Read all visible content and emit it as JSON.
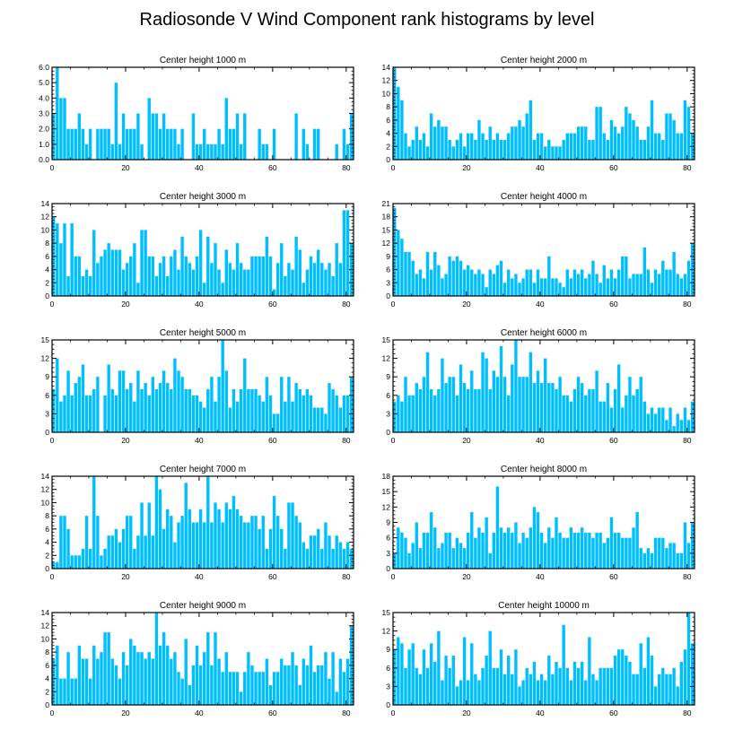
{
  "title": "Radiosonde V Wind Component rank histograms by level",
  "colors": {
    "bar": "#00BFFF",
    "axis": "#000000"
  },
  "chart_data": [
    {
      "type": "bar",
      "title": "Center height 1000 m",
      "xlim": [
        0,
        82
      ],
      "ylim": [
        0,
        6
      ],
      "xticks": [
        0,
        20,
        40,
        60,
        80
      ],
      "yticks": [
        "0.0",
        "1.0",
        "2.0",
        "3.0",
        "4.0",
        "5.0",
        "6.0"
      ],
      "values": [
        3,
        6,
        4,
        4,
        2,
        2,
        2,
        3,
        2,
        1,
        2,
        0,
        2,
        2,
        2,
        2,
        1,
        5,
        1,
        3,
        2,
        2,
        2,
        3,
        1,
        0,
        4,
        3,
        3,
        2,
        3,
        2,
        2,
        2,
        1,
        2,
        0,
        0,
        3,
        1,
        1,
        2,
        1,
        1,
        1,
        2,
        1,
        4,
        2,
        2,
        3,
        1,
        3,
        0,
        0,
        0,
        2,
        1,
        1,
        0,
        2,
        0,
        0,
        0,
        0,
        0,
        3,
        0,
        2,
        1,
        0,
        2,
        2,
        0,
        0,
        0,
        0,
        1,
        0,
        2,
        1,
        3
      ]
    },
    {
      "type": "bar",
      "title": "Center height 2000 m",
      "xlim": [
        0,
        82
      ],
      "ylim": [
        0,
        14
      ],
      "xticks": [
        0,
        20,
        40,
        60,
        80
      ],
      "yticks": [
        "0",
        "2",
        "4",
        "6",
        "8",
        "10",
        "12",
        "14"
      ],
      "values": [
        14,
        11,
        9,
        4,
        2,
        3,
        5,
        3,
        4,
        2,
        7,
        5,
        6,
        5,
        5,
        3,
        2,
        3,
        4,
        2,
        4,
        4,
        3,
        6,
        4,
        3,
        5,
        3,
        4,
        3,
        3,
        4,
        5,
        5,
        6,
        5,
        7,
        9,
        3,
        4,
        4,
        2,
        3,
        2,
        2,
        2,
        3,
        4,
        4,
        4,
        5,
        5,
        5,
        3,
        3,
        8,
        8,
        4,
        3,
        6,
        5,
        4,
        5,
        8,
        7,
        6,
        5,
        3,
        3,
        5,
        9,
        4,
        4,
        3,
        7,
        7,
        6,
        4,
        4,
        9,
        8,
        4
      ]
    },
    {
      "type": "bar",
      "title": "Center height 3000 m",
      "xlim": [
        0,
        82
      ],
      "ylim": [
        0,
        14
      ],
      "xticks": [
        0,
        20,
        40,
        60,
        80
      ],
      "yticks": [
        "0",
        "2",
        "4",
        "6",
        "8",
        "10",
        "12",
        "14"
      ],
      "values": [
        12,
        11,
        8,
        11,
        3,
        11,
        6,
        6,
        3,
        4,
        3,
        10,
        5,
        6,
        7,
        8,
        7,
        7,
        7,
        4,
        5,
        6,
        8,
        2,
        10,
        10,
        6,
        6,
        3,
        5,
        6,
        3,
        6,
        7,
        4,
        9,
        6,
        5,
        4,
        6,
        10,
        2,
        9,
        5,
        8,
        4,
        2,
        7,
        5,
        4,
        8,
        5,
        4,
        4,
        6,
        6,
        6,
        6,
        9,
        6,
        1,
        5,
        8,
        3,
        5,
        4,
        9,
        7,
        2,
        4,
        6,
        5,
        7,
        5,
        4,
        5,
        3,
        8,
        5,
        13,
        13,
        8
      ]
    },
    {
      "type": "bar",
      "title": "Center height 4000 m",
      "xlim": [
        0,
        82
      ],
      "ylim": [
        0,
        21
      ],
      "xticks": [
        0,
        20,
        40,
        60,
        80
      ],
      "yticks": [
        "0",
        "3",
        "6",
        "9",
        "12",
        "15",
        "18",
        "21"
      ],
      "values": [
        20,
        15,
        13,
        10,
        10,
        8,
        5,
        6,
        4,
        10,
        6,
        10,
        7,
        4,
        5,
        9,
        8,
        9,
        8,
        6,
        7,
        6,
        5,
        6,
        5,
        2,
        6,
        5,
        7,
        8,
        3,
        6,
        4,
        5,
        3,
        4,
        6,
        6,
        3,
        6,
        4,
        4,
        9,
        4,
        4,
        3,
        2,
        6,
        4,
        6,
        5,
        6,
        4,
        5,
        8,
        5,
        3,
        7,
        4,
        6,
        4,
        6,
        9,
        9,
        4,
        5,
        5,
        5,
        11,
        6,
        3,
        6,
        5,
        8,
        6,
        6,
        10,
        5,
        4,
        5,
        8,
        12
      ]
    },
    {
      "type": "bar",
      "title": "Center height 5000 m",
      "xlim": [
        0,
        82
      ],
      "ylim": [
        0,
        15
      ],
      "xticks": [
        0,
        20,
        40,
        60,
        80
      ],
      "yticks": [
        "0",
        "3",
        "6",
        "9",
        "12",
        "15"
      ],
      "values": [
        7,
        12,
        5,
        6,
        10,
        6,
        8,
        9,
        11,
        6,
        6,
        7,
        9,
        0,
        6,
        11,
        7,
        6,
        10,
        10,
        7,
        8,
        5,
        10,
        7,
        8,
        6,
        9,
        7,
        8,
        10,
        8,
        7,
        12,
        10,
        9,
        7,
        7,
        6,
        6,
        5,
        4,
        7,
        9,
        5,
        9,
        15,
        10,
        4,
        7,
        5,
        7,
        12,
        7,
        7,
        7,
        6,
        5,
        9,
        6,
        3,
        3,
        9,
        5,
        9,
        5,
        8,
        7,
        6,
        7,
        6,
        4,
        4,
        4,
        3,
        8,
        7,
        6,
        4,
        6,
        6,
        9
      ]
    },
    {
      "type": "bar",
      "title": "Center height 6000 m",
      "xlim": [
        0,
        82
      ],
      "ylim": [
        0,
        15
      ],
      "xticks": [
        0,
        20,
        40,
        60,
        80
      ],
      "yticks": [
        "0",
        "3",
        "6",
        "9",
        "12",
        "15"
      ],
      "values": [
        5,
        6,
        5,
        9,
        6,
        6,
        8,
        7,
        9,
        13,
        7,
        6,
        7,
        12,
        8,
        9,
        9,
        6,
        11,
        8,
        7,
        10,
        7,
        7,
        13,
        12,
        7,
        10,
        9,
        14,
        9,
        6,
        11,
        15,
        9,
        9,
        9,
        13,
        8,
        10,
        8,
        12,
        8,
        8,
        7,
        9,
        6,
        6,
        5,
        7,
        9,
        8,
        6,
        7,
        7,
        10,
        5,
        5,
        8,
        4,
        7,
        11,
        4,
        6,
        9,
        6,
        7,
        9,
        5,
        3,
        4,
        3,
        4,
        4,
        2,
        4,
        1,
        3,
        2,
        4,
        2,
        5
      ]
    },
    {
      "type": "bar",
      "title": "Center height 7000 m",
      "xlim": [
        0,
        82
      ],
      "ylim": [
        0,
        14
      ],
      "xticks": [
        0,
        20,
        40,
        60,
        80
      ],
      "yticks": [
        "0",
        "2",
        "4",
        "6",
        "8",
        "10",
        "12",
        "14"
      ],
      "values": [
        1,
        1,
        8,
        8,
        6,
        2,
        2,
        2,
        3,
        8,
        3,
        14,
        8,
        2,
        3,
        5,
        5,
        6,
        4,
        6,
        8,
        8,
        3,
        5,
        10,
        5,
        10,
        5,
        14,
        12,
        6,
        9,
        8,
        4,
        7,
        8,
        13,
        9,
        7,
        7,
        9,
        7,
        14,
        7,
        10,
        9,
        7,
        10,
        9,
        11,
        9,
        8,
        7,
        7,
        8,
        8,
        6,
        8,
        3,
        6,
        11,
        8,
        6,
        3,
        10,
        10,
        8,
        7,
        4,
        3,
        5,
        5,
        6,
        3,
        7,
        5,
        3,
        5,
        4,
        3,
        4,
        3
      ]
    },
    {
      "type": "bar",
      "title": "Center height 8000 m",
      "xlim": [
        0,
        82
      ],
      "ylim": [
        0,
        18
      ],
      "xticks": [
        0,
        20,
        40,
        60,
        80
      ],
      "yticks": [
        "0",
        "3",
        "6",
        "9",
        "12",
        "15",
        "18"
      ],
      "values": [
        3,
        8,
        7,
        6,
        3,
        5,
        9,
        4,
        7,
        7,
        11,
        8,
        4,
        5,
        7,
        7,
        4,
        6,
        5,
        4,
        7,
        11,
        6,
        8,
        7,
        10,
        3,
        7,
        16,
        8,
        7,
        8,
        7,
        9,
        5,
        7,
        6,
        8,
        12,
        11,
        7,
        5,
        8,
        6,
        10,
        7,
        6,
        6,
        8,
        7,
        7,
        8,
        7,
        7,
        6,
        7,
        7,
        5,
        6,
        10,
        7,
        7,
        6,
        6,
        6,
        8,
        11,
        4,
        3,
        4,
        3,
        6,
        6,
        6,
        4,
        5,
        5,
        3,
        3,
        9,
        5,
        9
      ]
    },
    {
      "type": "bar",
      "title": "Center height 9000 m",
      "xlim": [
        0,
        82
      ],
      "ylim": [
        0,
        14
      ],
      "xticks": [
        0,
        20,
        40,
        60,
        80
      ],
      "yticks": [
        "0",
        "2",
        "4",
        "6",
        "8",
        "10",
        "12",
        "14"
      ],
      "values": [
        7,
        9,
        4,
        4,
        8,
        4,
        4,
        9,
        7,
        7,
        4,
        9,
        7,
        8,
        11,
        11,
        7,
        6,
        4,
        8,
        6,
        10,
        9,
        8,
        8,
        7,
        8,
        7,
        14,
        9,
        11,
        9,
        7,
        8,
        5,
        4,
        10,
        3,
        6,
        9,
        6,
        8,
        11,
        6,
        11,
        7,
        5,
        8,
        5,
        5,
        5,
        2,
        5,
        8,
        6,
        5,
        5,
        5,
        7,
        3,
        5,
        5,
        7,
        6,
        6,
        8,
        6,
        3,
        7,
        6,
        9,
        5,
        6,
        6,
        8,
        4,
        8,
        2,
        7,
        5,
        7,
        12
      ]
    },
    {
      "type": "bar",
      "title": "Center height 10000 m",
      "xlim": [
        0,
        82
      ],
      "ylim": [
        0,
        15
      ],
      "xticks": [
        0,
        20,
        40,
        60,
        80
      ],
      "yticks": [
        "0",
        "3",
        "6",
        "9",
        "12",
        "15"
      ],
      "values": [
        9,
        11,
        10,
        6,
        9,
        10,
        6,
        5,
        9,
        6,
        10,
        7,
        12,
        4,
        8,
        6,
        8,
        3,
        4,
        11,
        4,
        10,
        5,
        4,
        6,
        8,
        12,
        6,
        6,
        9,
        5,
        8,
        5,
        9,
        3,
        4,
        6,
        5,
        7,
        4,
        5,
        4,
        8,
        5,
        7,
        6,
        13,
        6,
        4,
        7,
        6,
        7,
        4,
        11,
        5,
        4,
        6,
        6,
        6,
        6,
        8,
        9,
        9,
        8,
        7,
        5,
        5,
        10,
        6,
        11,
        8,
        3,
        5,
        6,
        5,
        5,
        6,
        3,
        7,
        9,
        15,
        10
      ]
    }
  ]
}
